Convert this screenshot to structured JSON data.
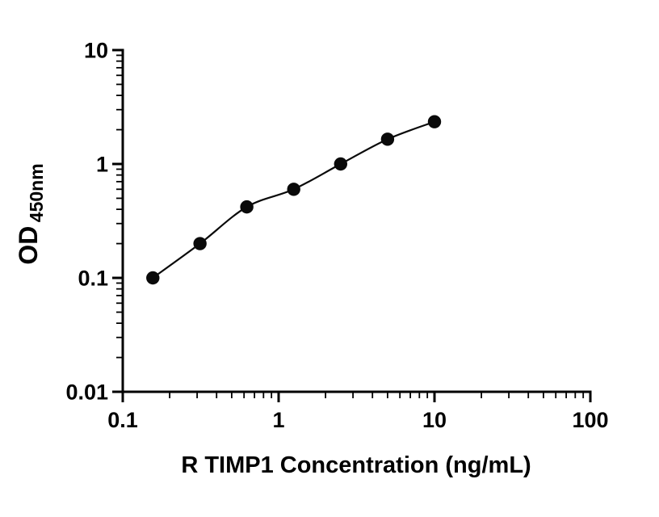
{
  "page": {
    "background": "#ffffff"
  },
  "chart_data": {
    "type": "scatter",
    "title": "",
    "xlabel": "R TIMP1 Concentration (ng/mL)",
    "ylabel_main": "OD",
    "ylabel_sub": "450nm",
    "x_scale": "log",
    "y_scale": "log",
    "xlim": [
      0.1,
      100
    ],
    "ylim": [
      0.01,
      10
    ],
    "x_ticks": [
      0.1,
      1,
      10,
      100
    ],
    "x_tick_labels": [
      "0.1",
      "1",
      "10",
      "100"
    ],
    "y_ticks": [
      0.01,
      0.1,
      1,
      10
    ],
    "y_tick_labels": [
      "0.01",
      "0.1",
      "1",
      "10"
    ],
    "grid": false,
    "legend": "none",
    "axis_color": "#000000",
    "series": [
      {
        "x": [
          0.156,
          0.313,
          0.625,
          1.25,
          2.5,
          5,
          10
        ],
        "y": [
          0.1,
          0.2,
          0.42,
          0.6,
          1.0,
          1.65,
          2.35
        ],
        "marker": "circle",
        "marker_color": "#0a0a0a",
        "line_color": "#0a0a0a",
        "line": true
      }
    ]
  }
}
